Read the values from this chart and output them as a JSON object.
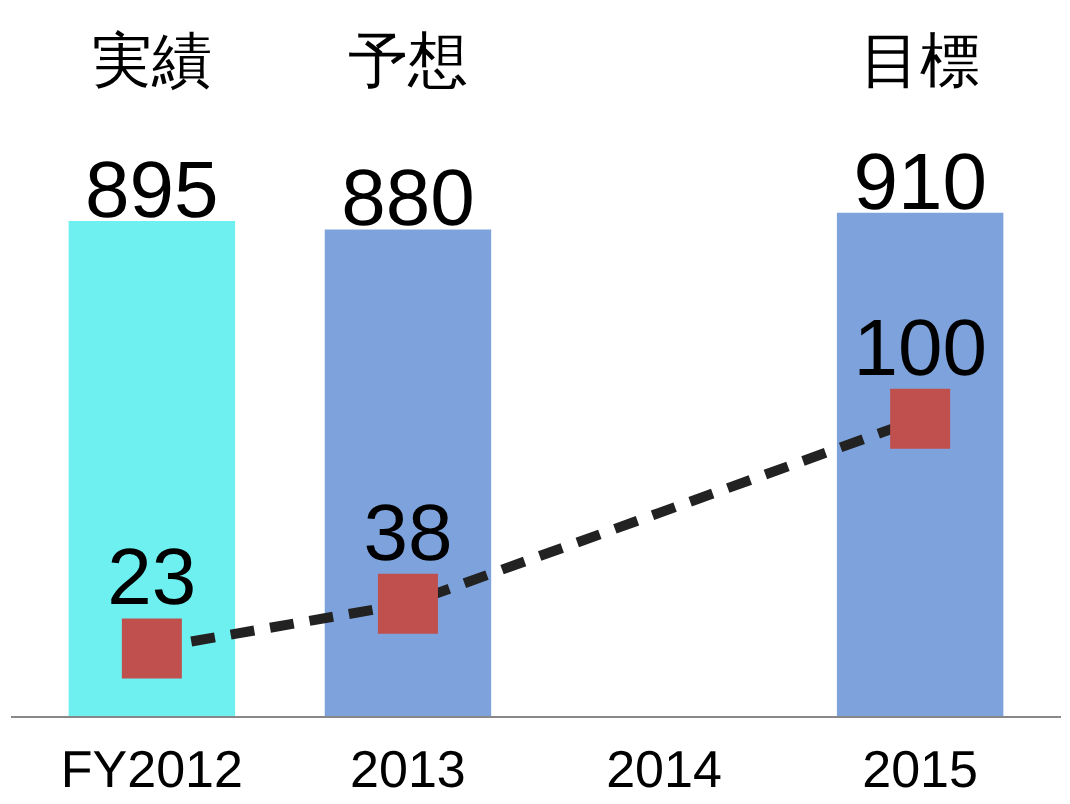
{
  "chart_data": {
    "type": "bar",
    "categories": [
      "FY2012",
      "2013",
      "2014",
      "2015"
    ],
    "series": [
      {
        "colors": [
          "#6ff0f0",
          "#7ea3dc",
          null,
          "#7ea3dc"
        ],
        "values": [
          895,
          880,
          null,
          910
        ]
      },
      {
        "type": "line",
        "axis": "y2",
        "color": "#c0504d",
        "marker": "square",
        "line_style": "dashed",
        "values": [
          23,
          38,
          null,
          100
        ]
      }
    ],
    "tick_labels": "x",
    "data_labels": true,
    "grid": false,
    "annotations": [
      "実績",
      "予想",
      "目標"
    ]
  }
}
